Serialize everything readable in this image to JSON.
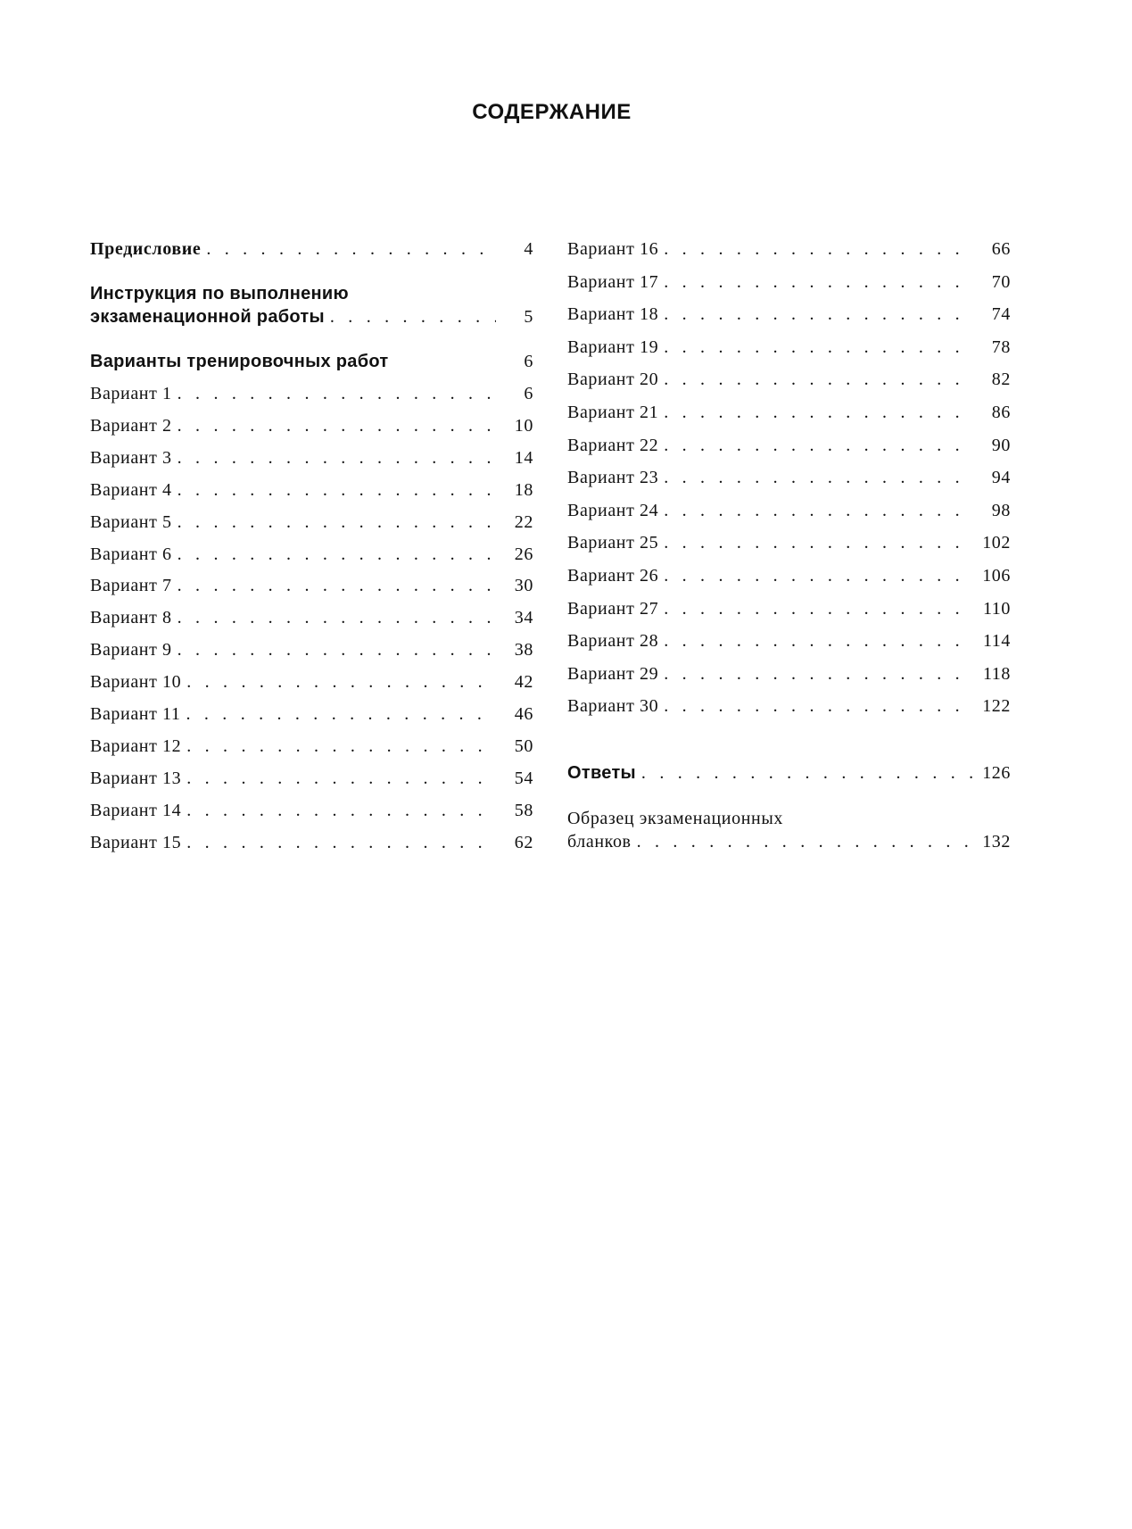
{
  "title": "СОДЕРЖАНИЕ",
  "left_column": [
    {
      "label": "Предисловие",
      "page": "4",
      "style": "serif-bold"
    },
    {
      "label": "Инструкция по выполнению",
      "label_line2": "экзаменационной работы",
      "page": "5",
      "style": "bold"
    },
    {
      "label": "Варианты тренировочных работ",
      "page": "6",
      "style": "bold",
      "dots": false
    },
    {
      "label": "Вариант 1",
      "page": "6"
    },
    {
      "label": "Вариант 2",
      "page": "10"
    },
    {
      "label": "Вариант 3",
      "page": "14"
    },
    {
      "label": "Вариант 4",
      "page": "18"
    },
    {
      "label": "Вариант 5",
      "page": "22"
    },
    {
      "label": "Вариант 6",
      "page": "26"
    },
    {
      "label": "Вариант 7",
      "page": "30"
    },
    {
      "label": "Вариант 8",
      "page": "34"
    },
    {
      "label": "Вариант 9",
      "page": "38"
    },
    {
      "label": "Вариант 10",
      "page": "42"
    },
    {
      "label": "Вариант 11",
      "page": "46"
    },
    {
      "label": "Вариант 12",
      "page": "50"
    },
    {
      "label": "Вариант 13",
      "page": "54"
    },
    {
      "label": "Вариант 14",
      "page": "58"
    },
    {
      "label": "Вариант 15",
      "page": "62"
    }
  ],
  "right_column": [
    {
      "label": "Вариант 16",
      "page": "66"
    },
    {
      "label": "Вариант 17",
      "page": "70"
    },
    {
      "label": "Вариант 18",
      "page": "74"
    },
    {
      "label": "Вариант 19",
      "page": "78"
    },
    {
      "label": "Вариант 20",
      "page": "82"
    },
    {
      "label": "Вариант 21",
      "page": "86"
    },
    {
      "label": "Вариант 22",
      "page": "90"
    },
    {
      "label": "Вариант 23",
      "page": "94"
    },
    {
      "label": "Вариант 24",
      "page": "98"
    },
    {
      "label": "Вариант 25",
      "page": "102"
    },
    {
      "label": "Вариант 26",
      "page": "106"
    },
    {
      "label": "Вариант 27",
      "page": "110"
    },
    {
      "label": "Вариант 28",
      "page": "114"
    },
    {
      "label": "Вариант 29",
      "page": "118"
    },
    {
      "label": "Вариант 30",
      "page": "122"
    },
    {
      "label": "Ответы",
      "page": "126",
      "style": "bold"
    },
    {
      "label": "Образец экзаменационных",
      "label_line2": "бланков",
      "page": "132"
    }
  ]
}
